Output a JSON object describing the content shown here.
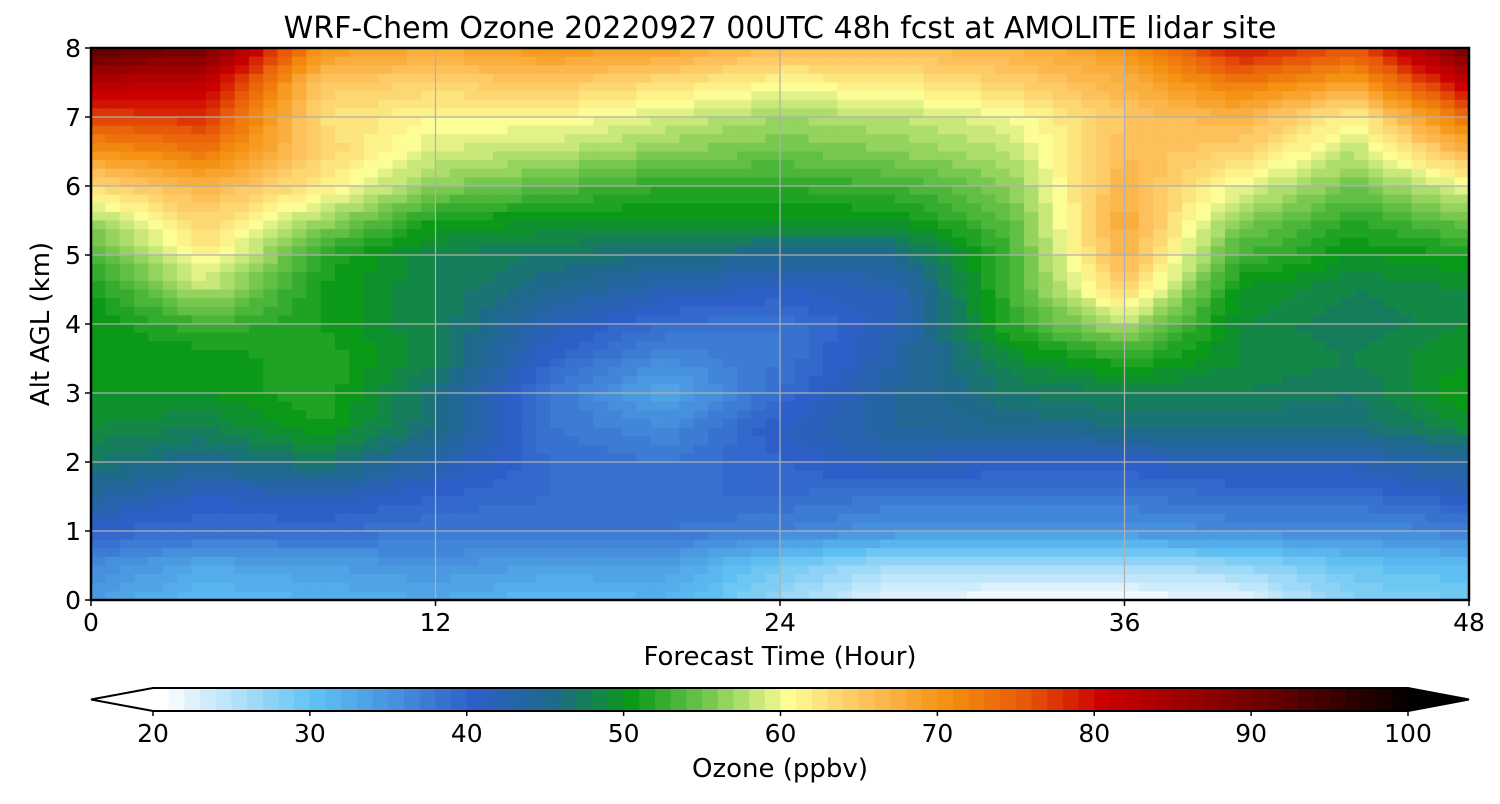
{
  "chart_data": {
    "type": "heatmap",
    "title": "WRF-Chem Ozone  20220927 00UTC 48h fcst at AMOLITE lidar site",
    "xlabel": "Forecast Time (Hour)",
    "ylabel": "Alt AGL (km)",
    "xlim": [
      0,
      48
    ],
    "ylim": [
      0,
      8
    ],
    "xticks": [
      0,
      12,
      24,
      36,
      48
    ],
    "yticks": [
      0,
      1,
      2,
      3,
      4,
      5,
      6,
      7,
      8
    ],
    "grid": true,
    "x": [
      0,
      4,
      8,
      12,
      16,
      20,
      24,
      28,
      32,
      36,
      40,
      44,
      48
    ],
    "y": [
      0,
      0.5,
      1,
      1.5,
      2,
      2.5,
      3,
      3.5,
      4,
      4.5,
      5,
      5.5,
      6,
      6.5,
      7,
      7.5,
      8
    ],
    "z": [
      [
        34,
        31,
        32,
        33,
        31,
        32,
        27,
        22,
        21,
        21,
        22,
        28,
        29
      ],
      [
        36,
        33,
        34,
        35,
        34,
        34,
        29,
        26,
        26,
        26,
        27,
        30,
        31
      ],
      [
        40,
        39,
        39,
        38,
        38,
        38,
        37,
        35,
        35,
        35,
        36,
        36,
        37
      ],
      [
        44,
        41,
        42,
        40,
        39,
        39,
        39,
        38,
        38,
        38,
        39,
        39,
        41
      ],
      [
        47,
        45,
        47,
        43,
        39,
        38,
        40,
        42,
        41,
        41,
        42,
        42,
        44
      ],
      [
        49,
        48,
        51,
        46,
        38,
        36,
        41,
        44,
        45,
        46,
        46,
        46,
        49
      ],
      [
        50,
        50,
        52,
        46,
        38,
        33,
        39,
        44,
        47,
        48,
        48,
        47,
        51
      ],
      [
        50,
        50,
        52,
        48,
        40,
        36,
        38,
        43,
        49,
        52,
        49,
        48,
        50
      ],
      [
        50,
        53,
        51,
        48,
        42,
        39,
        38,
        42,
        52,
        58,
        49,
        47,
        49
      ],
      [
        51,
        58,
        51,
        48,
        45,
        42,
        41,
        42,
        53,
        64,
        50,
        48,
        49
      ],
      [
        53,
        62,
        52,
        48,
        47,
        46,
        45,
        45,
        53,
        67,
        53,
        50,
        51
      ],
      [
        57,
        64,
        57,
        51,
        50,
        50,
        50,
        50,
        54,
        68,
        56,
        52,
        55
      ],
      [
        63,
        67,
        62,
        56,
        54,
        52,
        52,
        53,
        56,
        67,
        60,
        55,
        60
      ],
      [
        70,
        73,
        64,
        59,
        58,
        56,
        55,
        56,
        58,
        66,
        64,
        58,
        67
      ],
      [
        77,
        78,
        63,
        61,
        61,
        59,
        57,
        58,
        60,
        65,
        67,
        61,
        74
      ],
      [
        83,
        82,
        65,
        64,
        65,
        63,
        61,
        62,
        64,
        67,
        73,
        69,
        82
      ],
      [
        93,
        90,
        70,
        68,
        70,
        69,
        66,
        66,
        67,
        70,
        80,
        76,
        90
      ]
    ],
    "colorbar": {
      "label": "Ozone  (ppbv)",
      "min": 20,
      "max": 100,
      "step": 1,
      "ticks": [
        20,
        30,
        40,
        50,
        60,
        70,
        80,
        90,
        100
      ],
      "extend": "both",
      "anchor_colors": [
        [
          20,
          "#ffffff"
        ],
        [
          30,
          "#5ec0f2"
        ],
        [
          40,
          "#2e5fc8"
        ],
        [
          45,
          "#1e6a8a"
        ],
        [
          50,
          "#0a9a18"
        ],
        [
          55,
          "#78c850"
        ],
        [
          60,
          "#fdfd96"
        ],
        [
          65,
          "#fdc05a"
        ],
        [
          70,
          "#f59212"
        ],
        [
          75,
          "#e85a08"
        ],
        [
          80,
          "#cc0000"
        ],
        [
          90,
          "#700000"
        ],
        [
          100,
          "#000000"
        ]
      ]
    }
  }
}
